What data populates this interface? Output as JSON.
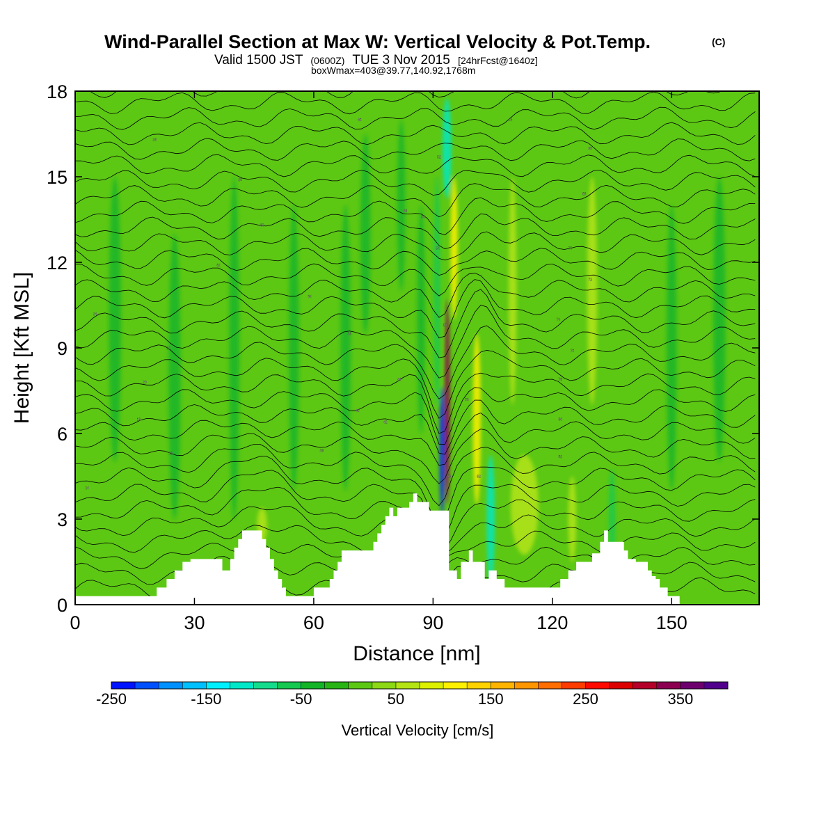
{
  "chart_data": {
    "type": "heatmap",
    "title": "Wind-Parallel Section at Max W: Vertical Velocity & Pot.Temp.",
    "title_mark": "(C)",
    "subtitle": {
      "prefix": "Valid 1500 JST",
      "utc": "(0600Z)",
      "date": "TUE 3 Nov 2015",
      "forecast": "[24hrFcst@1640z]"
    },
    "subtitle2": "boxWmax=403@39.77,140.92,1768m",
    "xlabel": "Distance [nm]",
    "ylabel": "Height [Kft MSL]",
    "xlim": [
      0,
      172
    ],
    "ylim": [
      0,
      18
    ],
    "xticks": [
      0,
      30,
      60,
      90,
      120,
      150
    ],
    "yticks": [
      0,
      3,
      6,
      9,
      12,
      15,
      18
    ],
    "grid": false,
    "background_color": "#5cc814",
    "colorbar": {
      "label": "Vertical Velocity [cm/s]",
      "min": -250,
      "max": 400,
      "step": 25,
      "tick_labels": [
        "-250",
        "-150",
        "-50",
        "50",
        "150",
        "250",
        "350"
      ],
      "tick_values": [
        -250,
        -150,
        -50,
        50,
        150,
        250,
        350
      ],
      "colors": [
        "#0014ff",
        "#0050ff",
        "#0090ff",
        "#00c0ff",
        "#00f0ff",
        "#00e8c8",
        "#14dc8c",
        "#14c850",
        "#14b428",
        "#28b414",
        "#5cc814",
        "#8cd814",
        "#b4e414",
        "#dcf000",
        "#fff000",
        "#ffd200",
        "#ffb400",
        "#ff9600",
        "#ff6e00",
        "#ff3c00",
        "#ff0a00",
        "#dc0000",
        "#b40028",
        "#8c0050",
        "#6e006e",
        "#50008c"
      ]
    },
    "velocity_features": [
      {
        "x": 93.6,
        "y": 7.1,
        "w": 1.3,
        "h": 7.2,
        "value": 325
      },
      {
        "x": 92.3,
        "y": 5.4,
        "w": 1.3,
        "h": 4.5,
        "value": -250
      },
      {
        "x": 95.3,
        "y": 12.5,
        "w": 1.8,
        "h": 5.0,
        "value": 100
      },
      {
        "x": 101.0,
        "y": 6.5,
        "w": 2.0,
        "h": 6.0,
        "value": 100
      },
      {
        "x": 104.5,
        "y": 3.0,
        "w": 2.0,
        "h": 4.5,
        "value": -125
      },
      {
        "x": 93.5,
        "y": 16.0,
        "w": 2.2,
        "h": 3.5,
        "value": -125
      },
      {
        "x": 91.0,
        "y": 11.0,
        "w": 1.6,
        "h": 8.0,
        "value": -75
      },
      {
        "x": 113.0,
        "y": 3.5,
        "w": 7.0,
        "h": 3.5,
        "value": 50
      },
      {
        "x": 135.0,
        "y": 3.0,
        "w": 1.6,
        "h": 3.5,
        "value": -75
      },
      {
        "x": 125.0,
        "y": 3.0,
        "w": 2.0,
        "h": 3.0,
        "value": 50
      },
      {
        "x": 82.0,
        "y": 14.0,
        "w": 2.0,
        "h": 6.0,
        "value": -50
      },
      {
        "x": 73.0,
        "y": 13.0,
        "w": 2.5,
        "h": 7.0,
        "value": -50
      },
      {
        "x": 68.0,
        "y": 9.0,
        "w": 2.5,
        "h": 10.0,
        "value": -50
      },
      {
        "x": 40.0,
        "y": 9.0,
        "w": 2.5,
        "h": 12.0,
        "value": -50
      },
      {
        "x": 25.0,
        "y": 8.0,
        "w": 3.0,
        "h": 10.0,
        "value": -50
      },
      {
        "x": 10.0,
        "y": 10.0,
        "w": 3.0,
        "h": 10.0,
        "value": -50
      },
      {
        "x": 55.0,
        "y": 9.0,
        "w": 2.5,
        "h": 10.0,
        "value": -50
      },
      {
        "x": 162.0,
        "y": 10.0,
        "w": 3.0,
        "h": 10.0,
        "value": -50
      },
      {
        "x": 150.0,
        "y": 9.0,
        "w": 2.5,
        "h": 10.0,
        "value": -50
      },
      {
        "x": 130.0,
        "y": 11.0,
        "w": 2.5,
        "h": 8.0,
        "value": 50
      },
      {
        "x": 110.0,
        "y": 11.0,
        "w": 2.0,
        "h": 8.0,
        "value": 50
      },
      {
        "x": 47.0,
        "y": 2.8,
        "w": 2.5,
        "h": 1.2,
        "value": 50
      },
      {
        "x": 87.0,
        "y": 10.0,
        "w": 2.0,
        "h": 8.0,
        "value": -50
      }
    ],
    "terrain": {
      "x": [
        0,
        0,
        20.5,
        20.5,
        23,
        23,
        25,
        25,
        27,
        27,
        29,
        29,
        30,
        30,
        37,
        37,
        39,
        39,
        40,
        40,
        41,
        41,
        42,
        42,
        47,
        47,
        48,
        48,
        49,
        49,
        50,
        50,
        51,
        51,
        52,
        52,
        53,
        53,
        54,
        54,
        56,
        56,
        60,
        60,
        64,
        64,
        65,
        65,
        66,
        66,
        67,
        67,
        68,
        68,
        75,
        75,
        76,
        76,
        77,
        77,
        78,
        78,
        79,
        79,
        80,
        80,
        81,
        81,
        84,
        84,
        85,
        85,
        86,
        86,
        89,
        89,
        94,
        94,
        96,
        96,
        97,
        97,
        99,
        99,
        100,
        100,
        103,
        103,
        104,
        104,
        106,
        106,
        108,
        108,
        122,
        122,
        124,
        124,
        126,
        126,
        130,
        130,
        132,
        132,
        133,
        133,
        134,
        134,
        138,
        138,
        139,
        139,
        141,
        141,
        144,
        144,
        145,
        145,
        146,
        146,
        147,
        147,
        149,
        149,
        152,
        152,
        154,
        154,
        172,
        172
      ],
      "height": [
        0,
        0.3,
        0.3,
        0.6,
        0.6,
        0.9,
        0.9,
        1.2,
        1.2,
        1.5,
        1.5,
        1.6,
        1.6,
        1.6,
        1.6,
        1.2,
        1.2,
        1.6,
        1.6,
        2,
        2,
        2.3,
        2.3,
        2.6,
        2.6,
        2.3,
        2.3,
        2,
        2,
        1.6,
        1.6,
        1.2,
        1.2,
        0.9,
        0.9,
        0.6,
        0.6,
        0.3,
        0.3,
        0.3,
        0.3,
        0.3,
        0.3,
        0.6,
        0.6,
        0.9,
        0.9,
        1.2,
        1.2,
        1.5,
        1.5,
        1.9,
        1.9,
        1.9,
        1.9,
        2.2,
        2.2,
        2.5,
        2.5,
        2.8,
        2.8,
        3.1,
        3.1,
        3.4,
        3.4,
        3.1,
        3.1,
        3.4,
        3.4,
        3.6,
        3.6,
        3.9,
        3.9,
        3.6,
        3.6,
        3.3,
        3.3,
        1.2,
        1.2,
        0.9,
        0.9,
        1.5,
        1.5,
        1.9,
        1.9,
        1.5,
        1.5,
        0.9,
        0.9,
        1.2,
        1.2,
        0.9,
        0.9,
        0.6,
        0.6,
        0.9,
        0.9,
        1.2,
        1.2,
        1.5,
        1.5,
        1.8,
        1.8,
        2.2,
        2.2,
        2.6,
        2.6,
        2.2,
        2.2,
        1.9,
        1.9,
        1.6,
        1.6,
        1.5,
        1.5,
        1.2,
        1.2,
        1.0,
        1.0,
        0.9,
        0.9,
        0.6,
        0.6,
        0.3,
        0.3,
        0
      ]
    },
    "isentrope_labels": [
      {
        "x": 3,
        "y": 4.1,
        "text": "14"
      },
      {
        "x": 16,
        "y": 6.5,
        "text": "16"
      },
      {
        "x": 24,
        "y": 5.3,
        "text": "18"
      },
      {
        "x": 17.5,
        "y": 7.8,
        "text": "20"
      },
      {
        "x": 23.5,
        "y": 9.0,
        "text": "22"
      },
      {
        "x": 5,
        "y": 10.2,
        "text": "24"
      },
      {
        "x": 20,
        "y": 16.3,
        "text": "26"
      },
      {
        "x": 41.5,
        "y": 14.9,
        "text": "28"
      },
      {
        "x": 47,
        "y": 13.3,
        "text": "30"
      },
      {
        "x": 36,
        "y": 11.9,
        "text": "32"
      },
      {
        "x": 59,
        "y": 10.8,
        "text": "34"
      },
      {
        "x": 69,
        "y": 9.5,
        "text": "36"
      },
      {
        "x": 62,
        "y": 5.4,
        "text": "38"
      },
      {
        "x": 71,
        "y": 6.8,
        "text": "40"
      },
      {
        "x": 78,
        "y": 6.4,
        "text": "42"
      },
      {
        "x": 81.5,
        "y": 7.9,
        "text": "44"
      },
      {
        "x": 71.5,
        "y": 17.0,
        "text": "46"
      },
      {
        "x": 83,
        "y": 13.8,
        "text": "48"
      },
      {
        "x": 87.5,
        "y": 13.6,
        "text": "50"
      },
      {
        "x": 91.5,
        "y": 15.7,
        "text": "52"
      },
      {
        "x": 91.2,
        "y": 12.5,
        "text": "54"
      },
      {
        "x": 93,
        "y": 9.8,
        "text": "56"
      },
      {
        "x": 94,
        "y": 4.5,
        "text": "58"
      },
      {
        "x": 98.5,
        "y": 7.2,
        "text": "60"
      },
      {
        "x": 101.5,
        "y": 4.5,
        "text": "62"
      },
      {
        "x": 109.5,
        "y": 17.0,
        "text": "64"
      },
      {
        "x": 129.5,
        "y": 16.0,
        "text": "66"
      },
      {
        "x": 128,
        "y": 14.4,
        "text": "68"
      },
      {
        "x": 124.5,
        "y": 12.5,
        "text": "70"
      },
      {
        "x": 129.5,
        "y": 11.4,
        "text": "72"
      },
      {
        "x": 121.5,
        "y": 10.0,
        "text": "74"
      },
      {
        "x": 125,
        "y": 8.9,
        "text": "76"
      },
      {
        "x": 122,
        "y": 7.9,
        "text": "78"
      },
      {
        "x": 122,
        "y": 6.5,
        "text": "80"
      },
      {
        "x": 122,
        "y": 5.2,
        "text": "82"
      }
    ]
  }
}
